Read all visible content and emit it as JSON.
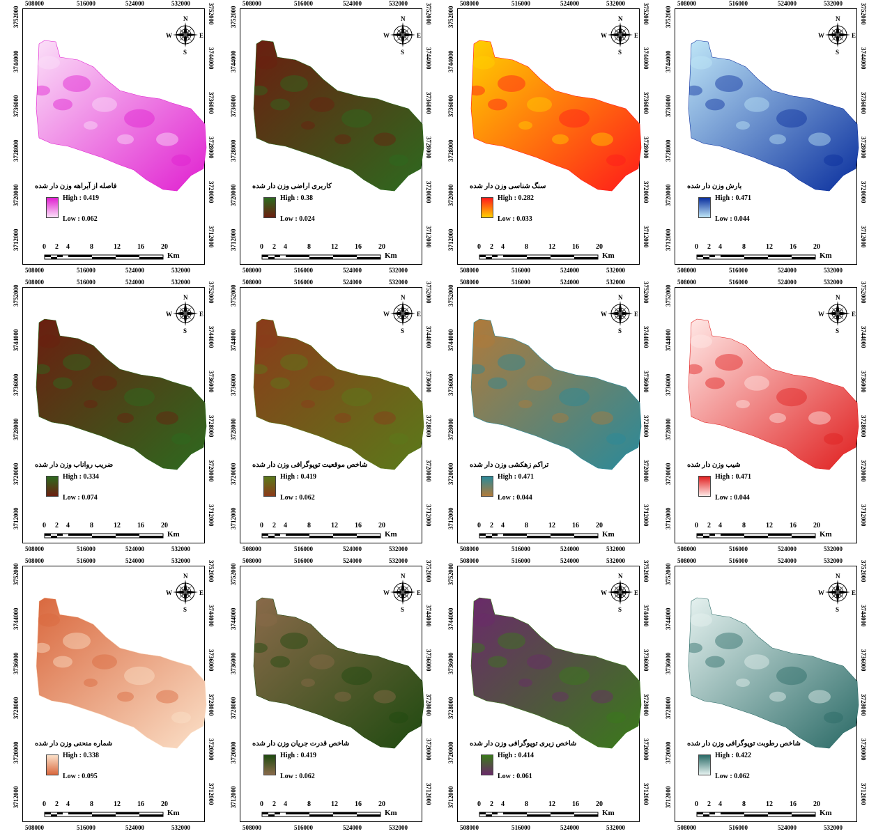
{
  "x_ticks": [
    "508000",
    "516000",
    "524000",
    "532000"
  ],
  "y_ticks": [
    "3752000",
    "3744000",
    "3736000",
    "3728000",
    "3720000",
    "3712000"
  ],
  "scale_labels": [
    "0",
    "2",
    "4",
    "8",
    "12",
    "16",
    "20"
  ],
  "scale_unit": "Km",
  "compass": {
    "n": "N",
    "s": "S",
    "e": "E",
    "w": "W"
  },
  "maps": [
    {
      "title": "فاصله از آبراهه وزن دار شده",
      "high": "High : 0.419",
      "low": "Low : 0.062",
      "colors": [
        "#e020d0",
        "#fbe0f8"
      ]
    },
    {
      "title": "کاربری اراضی وزن دار شده",
      "high": "High : 0.38",
      "low": "Low : 0.024",
      "colors": [
        "#2d6a1f",
        "#6b1e10"
      ]
    },
    {
      "title": "سنگ شناسی وزن دار شده",
      "high": "High : 0.282",
      "low": "Low : 0.033",
      "colors": [
        "#ff1a1a",
        "#ffd000"
      ]
    },
    {
      "title": "بارش وزن دار شده",
      "high": "High : 0.471",
      "low": "Low : 0.044",
      "colors": [
        "#0a2f9e",
        "#bfe6f7"
      ]
    },
    {
      "title": "ضریب رواناب وزن دار شده",
      "high": "High : 0.334",
      "low": "Low : 0.074",
      "colors": [
        "#2d6a1f",
        "#6b1e10"
      ]
    },
    {
      "title": "شاخص موقعیت توپوگرافی وزن دار شده",
      "high": "High : 0.419",
      "low": "Low : 0.062",
      "colors": [
        "#5a7a1a",
        "#8b3a1a"
      ]
    },
    {
      "title": "تراکم زهکشی وزن دار شده",
      "high": "High : 0.471",
      "low": "Low : 0.044",
      "colors": [
        "#2a8a9a",
        "#b07a3a"
      ]
    },
    {
      "title": "شیب وزن دار شده",
      "high": "High : 0.471",
      "low": "Low : 0.044",
      "colors": [
        "#e02020",
        "#ffe8e6"
      ]
    },
    {
      "title": "شماره منحنی وزن دار شده",
      "high": "High : 0.338",
      "low": "Low : 0.095",
      "colors": [
        "#fbe0c8",
        "#d9683e"
      ]
    },
    {
      "title": "شاخص قدرت جریان وزن دار شده",
      "high": "High : 0.419",
      "low": "Low : 0.062",
      "colors": [
        "#1f4a10",
        "#8a6a4a"
      ]
    },
    {
      "title": "شاخص زبری توپوگرافی وزن دار شده",
      "high": "High : 0.414",
      "low": "Low : 0.061",
      "colors": [
        "#3a7a1a",
        "#6a2a6a"
      ]
    },
    {
      "title": "شاخص رطوبت توپوگرافی وزن دار شده",
      "high": "High : 0.422",
      "low": "Low : 0.062",
      "colors": [
        "#2a6a66",
        "#e6f2f0"
      ]
    }
  ]
}
